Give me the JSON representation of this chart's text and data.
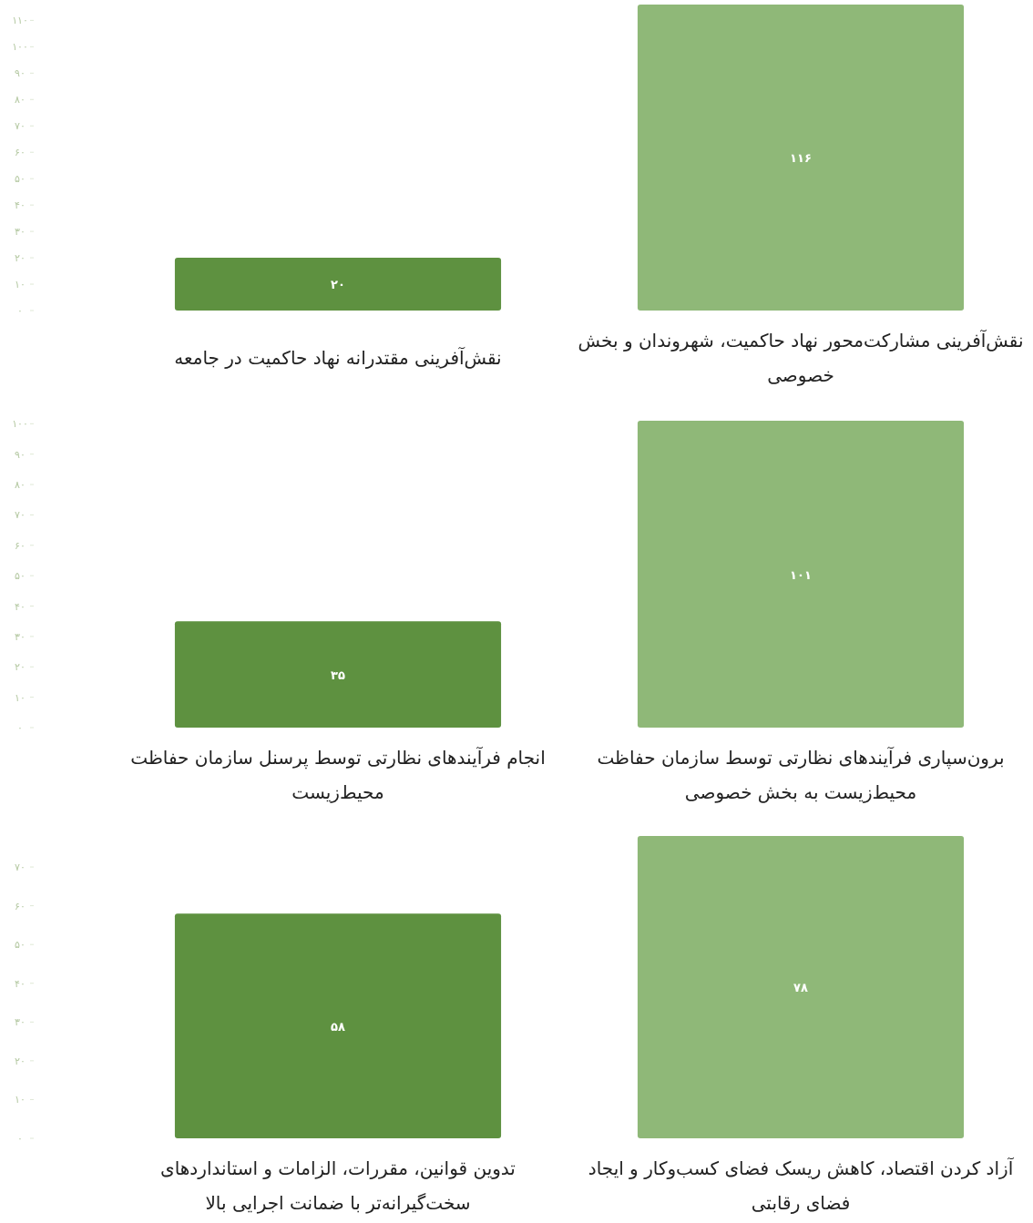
{
  "chart_data": [
    {
      "type": "bar",
      "categories": [
        "نقش‌آفرینی مقتدرانه نهاد حاکمیت در جامعه",
        "نقش‌آفرینی مشارکت‌محور نهاد حاکمیت، شهروندان و بخش خصوصی"
      ],
      "values": [
        20,
        116
      ],
      "colors": [
        "#5e9140",
        "#8fb878"
      ],
      "value_labels": [
        "۲۰",
        "۱۱۶"
      ],
      "ylim": [
        0,
        116
      ],
      "yticks": [
        {
          "value": 0,
          "label": "۰"
        },
        {
          "value": 10,
          "label": "۱۰"
        },
        {
          "value": 20,
          "label": "۲۰"
        },
        {
          "value": 30,
          "label": "۳۰"
        },
        {
          "value": 40,
          "label": "۴۰"
        },
        {
          "value": 50,
          "label": "۵۰"
        },
        {
          "value": 60,
          "label": "۶۰"
        },
        {
          "value": 70,
          "label": "۷۰"
        },
        {
          "value": 80,
          "label": "۸۰"
        },
        {
          "value": 90,
          "label": "۹۰"
        },
        {
          "value": 100,
          "label": "۱۰۰"
        },
        {
          "value": 110,
          "label": "۱۱۰"
        }
      ]
    },
    {
      "type": "bar",
      "categories": [
        "انجام فرآیندهای نظارتی توسط پرسنل سازمان حفاظت محیط‌زیست",
        "برون‌سپاری فرآیندهای نظارتی توسط سازمان حفاظت محیط‌زیست به بخش خصوصی"
      ],
      "values": [
        35,
        101
      ],
      "colors": [
        "#5e9140",
        "#8fb878"
      ],
      "value_labels": [
        "۳۵",
        "۱۰۱"
      ],
      "ylim": [
        0,
        101
      ],
      "yticks": [
        {
          "value": 0,
          "label": "۰"
        },
        {
          "value": 10,
          "label": "۱۰"
        },
        {
          "value": 20,
          "label": "۲۰"
        },
        {
          "value": 30,
          "label": "۳۰"
        },
        {
          "value": 40,
          "label": "۴۰"
        },
        {
          "value": 50,
          "label": "۵۰"
        },
        {
          "value": 60,
          "label": "۶۰"
        },
        {
          "value": 70,
          "label": "۷۰"
        },
        {
          "value": 80,
          "label": "۸۰"
        },
        {
          "value": 90,
          "label": "۹۰"
        },
        {
          "value": 100,
          "label": "۱۰۰"
        }
      ]
    },
    {
      "type": "bar",
      "categories": [
        "تدوین قوانین، مقررات، الزامات و استانداردهای سخت‌گیرانه‌تر با ضمانت اجرایی بالا",
        "آزاد کردن اقتصاد، کاهش ریسک فضای کسب‌وکار و ایجاد فضای رقابتی"
      ],
      "values": [
        58,
        78
      ],
      "colors": [
        "#5e9140",
        "#8fb878"
      ],
      "value_labels": [
        "۵۸",
        "۷۸"
      ],
      "ylim": [
        0,
        78
      ],
      "yticks": [
        {
          "value": 0,
          "label": "۰"
        },
        {
          "value": 10,
          "label": "۱۰"
        },
        {
          "value": 20,
          "label": "۲۰"
        },
        {
          "value": 30,
          "label": "۳۰"
        },
        {
          "value": 40,
          "label": "۴۰"
        },
        {
          "value": 50,
          "label": "۵۰"
        },
        {
          "value": 60,
          "label": "۶۰"
        },
        {
          "value": 70,
          "label": "۷۰"
        }
      ]
    }
  ]
}
